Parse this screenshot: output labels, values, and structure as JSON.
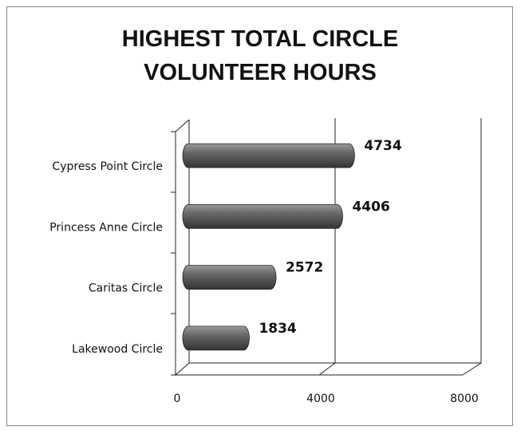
{
  "chart_data": {
    "type": "bar",
    "orientation": "horizontal",
    "title": "HIGHEST TOTAL CIRCLE VOLUNTEER HOURS",
    "categories": [
      "Cypress Point Circle",
      "Princess Anne Circle",
      "Caritas Circle",
      "Lakewood Circle"
    ],
    "values": [
      4734,
      4406,
      2572,
      1834
    ],
    "color": "#555555",
    "xlim": [
      0,
      8000
    ],
    "xticks": [
      0,
      4000,
      8000
    ],
    "grid": true
  }
}
